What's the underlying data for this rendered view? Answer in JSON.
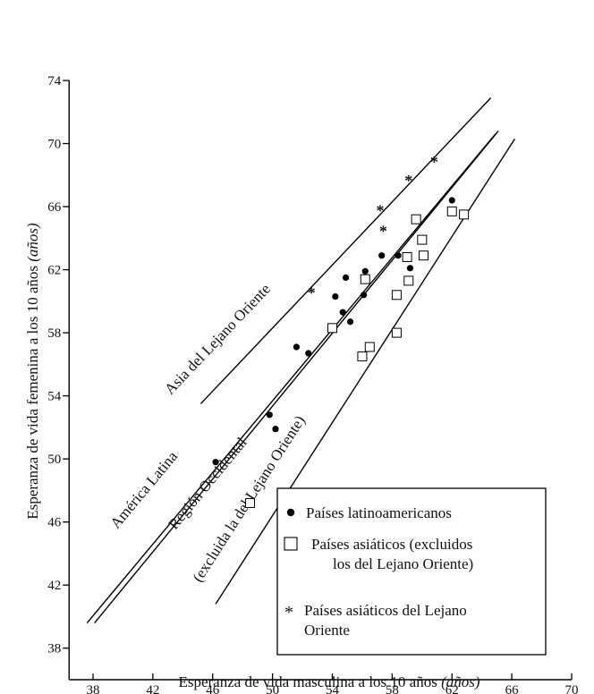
{
  "chart_data": {
    "type": "scatter",
    "xlabel": "Esperanza de vida masculina a los 10 años (años)",
    "ylabel": "Esperanza de vida femenina a los 10 años (años)",
    "xlim": [
      38,
      70
    ],
    "ylim": [
      36,
      74
    ],
    "x_ticks": [
      38,
      42,
      46,
      50,
      54,
      58,
      62,
      66,
      70
    ],
    "y_ticks": [
      38,
      42,
      46,
      50,
      54,
      58,
      62,
      66,
      70,
      74
    ],
    "grid": false,
    "legend_position": "bottom-right",
    "legend": [
      {
        "marker": "dot",
        "label": "Países latinoamericanos"
      },
      {
        "marker": "square",
        "label": "Países asiáticos (excluidos los del Lejano Oriente)"
      },
      {
        "marker": "star",
        "label": "Países asiáticos del Lejano Oriente"
      }
    ],
    "series": [
      {
        "marker": "dot",
        "points": [
          [
            46.2,
            49.8
          ],
          [
            49.8,
            52.8
          ],
          [
            50.2,
            51.9
          ],
          [
            51.6,
            57.1
          ],
          [
            52.4,
            56.7
          ],
          [
            54.2,
            60.3
          ],
          [
            54.7,
            59.3
          ],
          [
            54.9,
            61.5
          ],
          [
            55.2,
            58.7
          ],
          [
            56.1,
            60.4
          ],
          [
            56.2,
            61.9
          ],
          [
            57.3,
            62.9
          ],
          [
            58.4,
            62.9
          ],
          [
            59.2,
            62.1
          ],
          [
            62.0,
            66.4
          ]
        ]
      },
      {
        "marker": "square",
        "points": [
          [
            48.5,
            47.2
          ],
          [
            54.0,
            58.3
          ],
          [
            56.0,
            56.5
          ],
          [
            56.2,
            61.4
          ],
          [
            56.5,
            57.1
          ],
          [
            58.3,
            58.0
          ],
          [
            58.3,
            60.4
          ],
          [
            59.0,
            62.8
          ],
          [
            59.1,
            61.3
          ],
          [
            59.6,
            65.2
          ],
          [
            60.0,
            63.9
          ],
          [
            60.1,
            62.9
          ],
          [
            62.0,
            65.7
          ],
          [
            62.8,
            65.5
          ]
        ]
      },
      {
        "marker": "star",
        "points": [
          [
            52.6,
            60.6
          ],
          [
            57.2,
            65.8
          ],
          [
            57.4,
            64.5
          ],
          [
            59.1,
            67.7
          ],
          [
            60.8,
            68.9
          ]
        ]
      }
    ],
    "lines": [
      {
        "label": "Asia del Lejano Oriente",
        "from": [
          45.2,
          53.5
        ],
        "to": [
          64.6,
          72.9
        ]
      },
      {
        "label": "América Latina",
        "from": [
          37.6,
          39.6
        ],
        "to": [
          64.9,
          70.6
        ]
      },
      {
        "label": "Región Occidental",
        "from": [
          38.1,
          39.6
        ],
        "to": [
          65.1,
          70.8
        ]
      },
      {
        "label": "(excluida la del Lejano Oriente)",
        "from": [
          46.2,
          40.8
        ],
        "to": [
          66.2,
          70.3
        ]
      }
    ]
  }
}
